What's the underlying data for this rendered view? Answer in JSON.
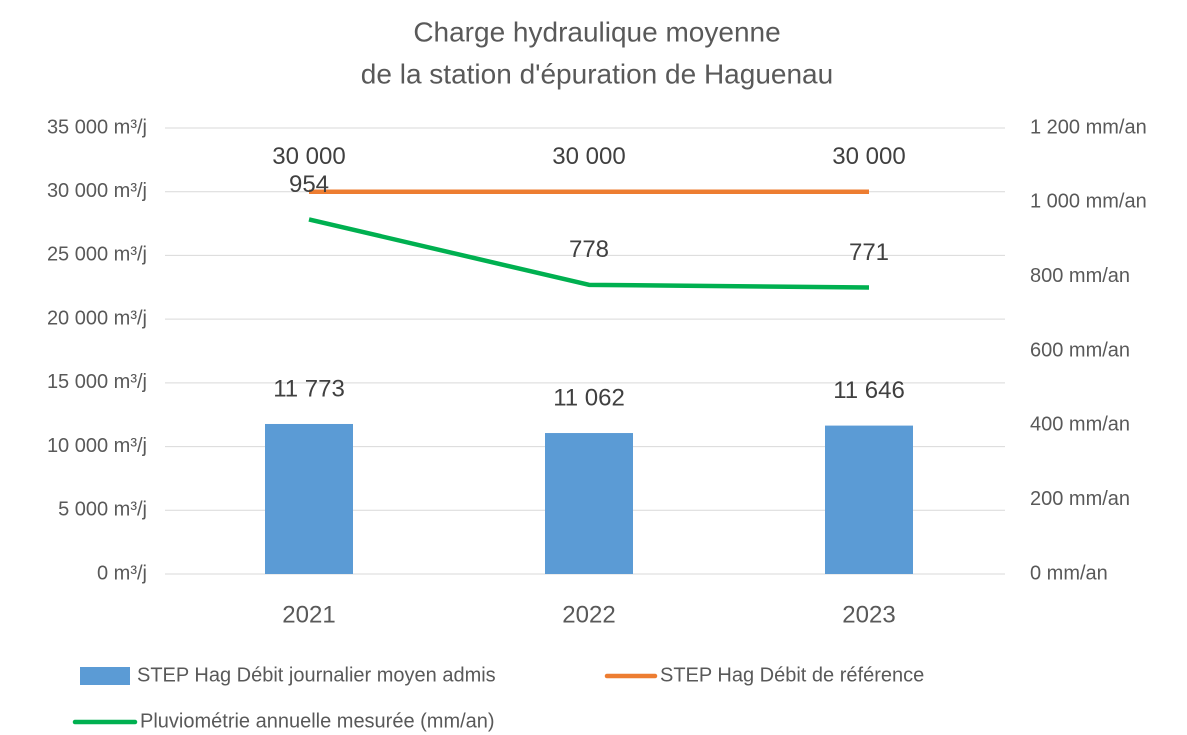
{
  "chart_data": {
    "type": "bar",
    "title": [
      "Charge hydraulique moyenne",
      "de la station d'épuration de Haguenau"
    ],
    "categories": [
      "2021",
      "2022",
      "2023"
    ],
    "series": [
      {
        "name": "STEP Hag Débit journalier moyen admis",
        "type": "bar",
        "color": "#5b9bd5",
        "values": [
          11773,
          11062,
          11646
        ],
        "value_labels": [
          "11 773",
          "11 062",
          "11 646"
        ]
      },
      {
        "name": "STEP Hag Débit de référence",
        "type": "line",
        "color": "#ed7d31",
        "values": [
          30000,
          30000,
          30000
        ],
        "value_labels": [
          "30 000",
          "30 000",
          "30 000"
        ]
      },
      {
        "name": "Pluviométrie annuelle mesurée (mm/an)",
        "type": "line",
        "axis": "y2",
        "color": "#00b050",
        "values": [
          954,
          778,
          771
        ]
      }
    ],
    "ylim": [
      0,
      35000
    ],
    "yticks": [
      {
        "value": 0,
        "label": "0 m³/j"
      },
      {
        "value": 5000,
        "label": "5 000 m³/j"
      },
      {
        "value": 10000,
        "label": "10 000 m³/j"
      },
      {
        "value": 15000,
        "label": "15 000 m³/j"
      },
      {
        "value": 20000,
        "label": "20 000 m³/j"
      },
      {
        "value": 25000,
        "label": "25 000 m³/j"
      },
      {
        "value": 30000,
        "label": "30 000 m³/j"
      },
      {
        "value": 35000,
        "label": "35 000 m³/j"
      }
    ],
    "y2lim": [
      0,
      1200
    ],
    "y2ticks": [
      {
        "value": 0,
        "label": "0 mm/an"
      },
      {
        "value": 200,
        "label": "200 mm/an"
      },
      {
        "value": 400,
        "label": "400 mm/an"
      },
      {
        "value": 600,
        "label": "600 mm/an"
      },
      {
        "value": 800,
        "label": "800 mm/an"
      },
      {
        "value": 1000,
        "label": "1 000 mm/an"
      },
      {
        "value": 1200,
        "label": "1 200 mm/an"
      }
    ],
    "grid": true
  }
}
